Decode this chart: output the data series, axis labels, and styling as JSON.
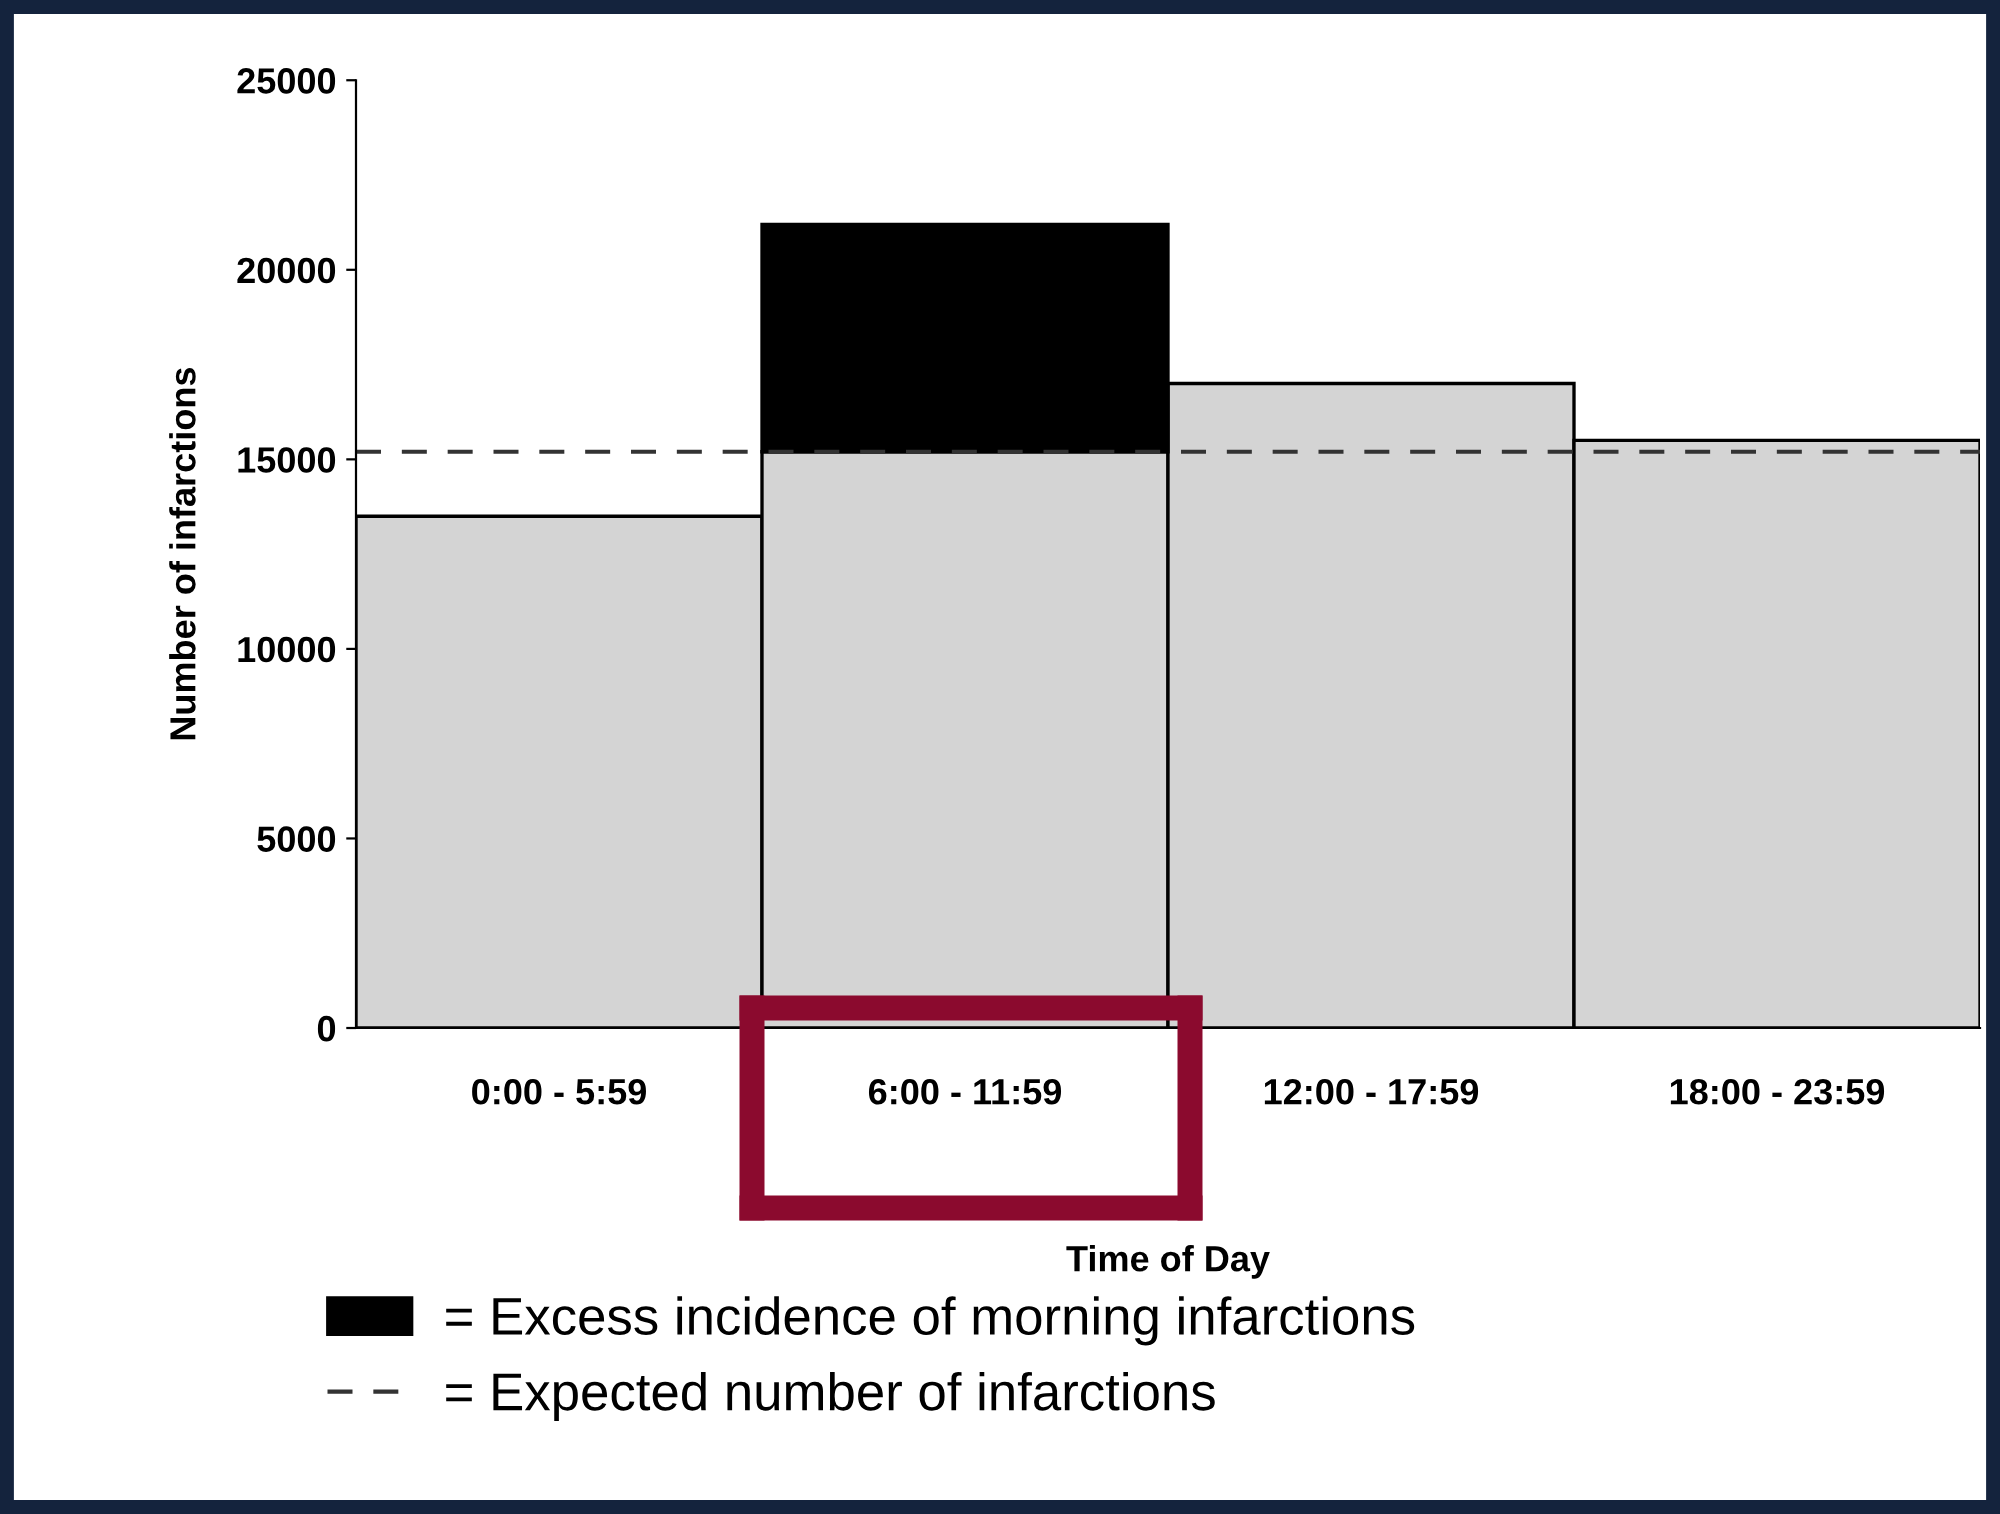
{
  "chart_data": {
    "type": "bar",
    "stacked": true,
    "xlabel": "Time of Day",
    "ylabel": "Number of infarctions",
    "categories": [
      "0:00 - 5:59",
      "6:00 - 11:59",
      "12:00 - 17:59",
      "18:00 - 23:59"
    ],
    "series": [
      {
        "color": "#d4d4d4",
        "values": [
          13500,
          15200,
          17000,
          15500
        ]
      },
      {
        "name": "= Excess incidence of morning infarctions",
        "color": "#000000",
        "values": [
          null,
          6000,
          null,
          null
        ]
      }
    ],
    "ref_lines": [
      {
        "axis": "y",
        "value": 15200,
        "label": "= Expected number of infarctions",
        "color": "#333333",
        "line_style": "dashed"
      }
    ],
    "ylim": [
      0,
      25000
    ],
    "yticks": [
      0,
      5000,
      10000,
      15000,
      20000,
      25000
    ],
    "grid": false,
    "legend": "bottom"
  }
}
